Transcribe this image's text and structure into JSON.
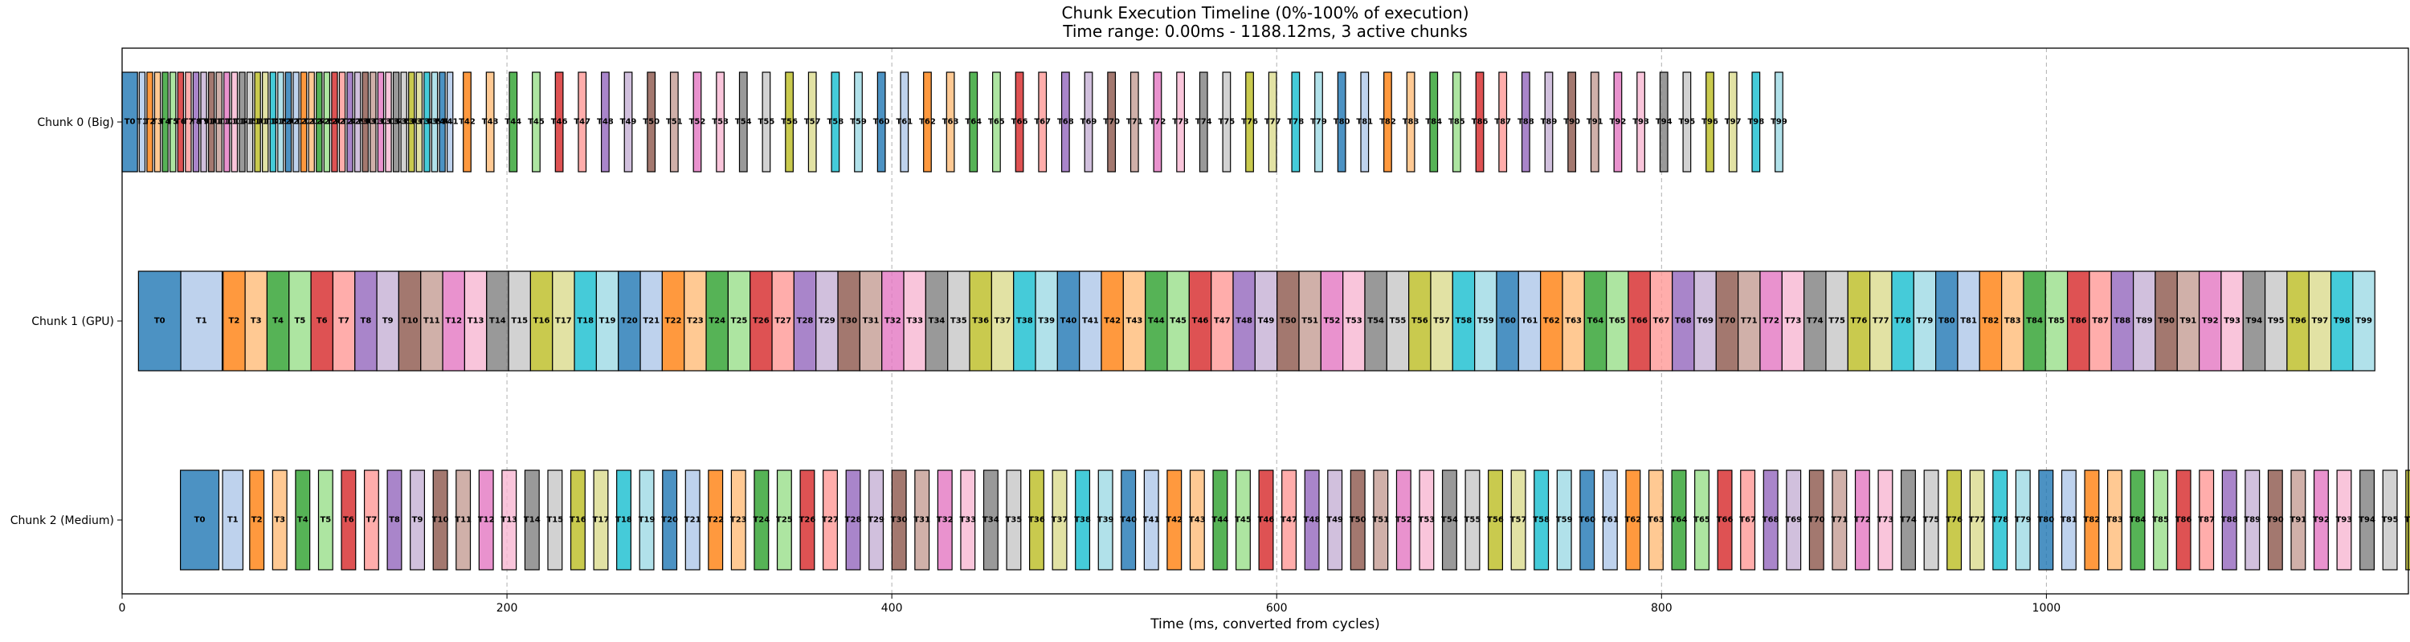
{
  "chart_data": {
    "type": "gantt",
    "title": "Chunk Execution Timeline (0%-100% of execution)",
    "subtitle": "Time range: 0.00ms - 1188.12ms, 3 active chunks",
    "xlabel": "Time (ms, converted from cycles)",
    "ylabel": "",
    "xlim": [
      0,
      1188.12
    ],
    "xticks": [
      0,
      200,
      400,
      600,
      800,
      1000
    ],
    "grid": "vertical dashed",
    "palette": [
      "#1f77b4",
      "#aec7e8",
      "#ff7f0e",
      "#ffbb78",
      "#2ca02c",
      "#98df8a",
      "#d62728",
      "#ff9896",
      "#9467bd",
      "#c5b0d5",
      "#8c564b",
      "#c49c94",
      "#e377c2",
      "#f7b6d2",
      "#7f7f7f",
      "#c7c7c7",
      "#bcbd22",
      "#dbdb8d",
      "#17becf",
      "#9edae5"
    ],
    "chunks": [
      {
        "name": "Chunk 0 (Big)",
        "task_count": 100,
        "first_starts": [
          0,
          8.9,
          12.9,
          16.9,
          20.9,
          24.9,
          28.9,
          32.9,
          36.9,
          40.9,
          44.9,
          48.9,
          52.9,
          56.9,
          60.9,
          64.9,
          68.9,
          72.9,
          76.9,
          80.9,
          84.9,
          88.9,
          92.9,
          96.9,
          100.9,
          104.9,
          108.9,
          112.9,
          116.9,
          120.9,
          124.9,
          128.9,
          132.9,
          136.9,
          140.9,
          144.9,
          148.9,
          152.9,
          156.9,
          160.9,
          164.9,
          168.9
        ],
        "first_durations": [
          8.0,
          3.0,
          3.0,
          3.0,
          3.0,
          3.0,
          3.0,
          3.0,
          3.0,
          3.0,
          3.0,
          3.0,
          3.0,
          3.0,
          3.0,
          3.0,
          3.0,
          3.0,
          3.0,
          3.0,
          3.0,
          3.0,
          3.0,
          3.0,
          3.0,
          3.0,
          3.0,
          3.0,
          3.0,
          3.0,
          3.0,
          3.0,
          3.0,
          3.0,
          3.0,
          3.0,
          3.0,
          3.0,
          3.0,
          3.0,
          3.0,
          3.0
        ],
        "rest_start": 177.3,
        "rest_step": 11.96,
        "rest_duration": 4.0
      },
      {
        "name": "Chunk 1 (GPU)",
        "task_count": 100,
        "first_starts": [
          8.5,
          30.5
        ],
        "first_durations": [
          22.0,
          21.5
        ],
        "rest_start": 52.5,
        "rest_step": 11.41,
        "rest_duration": 11.41
      },
      {
        "name": "Chunk 2 (Medium)",
        "task_count": 100,
        "first_starts": [
          30.3,
          52.2
        ],
        "first_durations": [
          20.0,
          10.6
        ],
        "rest_start": 66.3,
        "rest_step": 11.92,
        "rest_duration": 7.4
      }
    ]
  }
}
